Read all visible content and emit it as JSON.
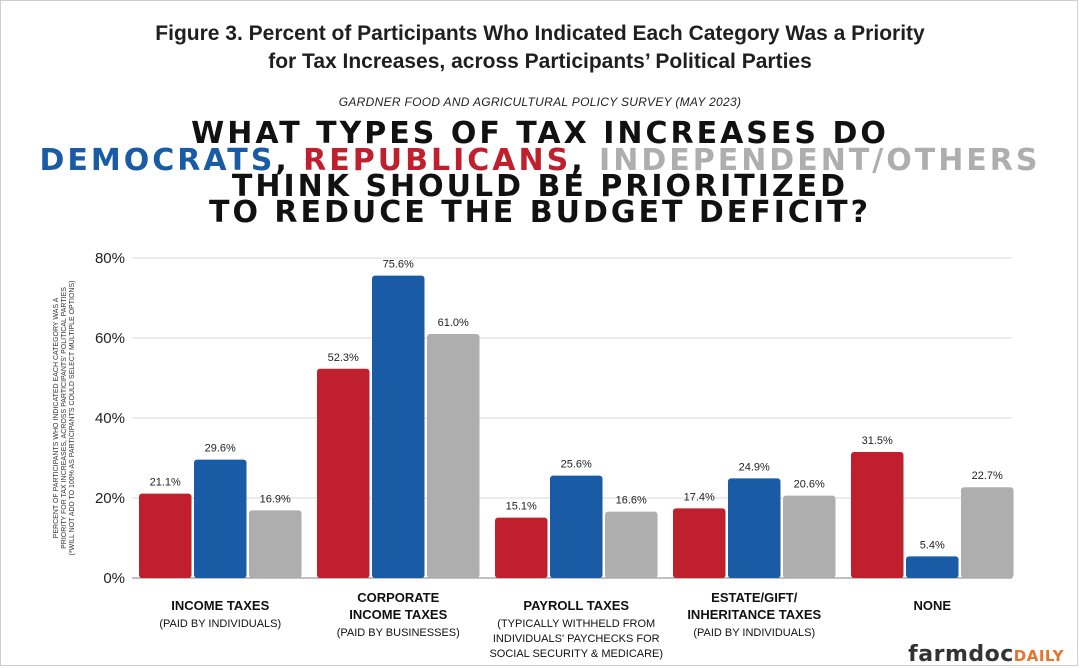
{
  "figure": {
    "title_line1": "Figure 3. Percent of Participants Who Indicated Each Category Was a Priority",
    "title_line2": "for Tax Increases, across Participants’ Political Parties",
    "source": "GARDNER FOOD AND AGRICULTURAL POLICY SURVEY (MAY 2023)"
  },
  "headline": {
    "line1": "WHAT TYPES OF TAX INCREASES DO",
    "dem": "DEMOCRATS",
    "sep1": ", ",
    "rep": "REPUBLICANS",
    "sep2": ", ",
    "ind": "INDEPENDENT/OTHERS",
    "line3": "THINK SHOULD BE PRIORITIZED",
    "line4": "TO REDUCE THE BUDGET DEFICIT?"
  },
  "brand": {
    "farmdoc": "farmdoc",
    "daily": "DAILY"
  },
  "colors": {
    "republicans": "#c0202d",
    "democrats": "#1a5ba6",
    "independents": "#aeaeae"
  },
  "chart_data": {
    "type": "bar",
    "ylabel_lines": [
      "PERCENT OF PARTICIPANTS WHO INDICATED EACH CATEGORY WAS A",
      "PRIORITY FOR TAX INCREASES, ACROSS PARTICIPANTS' POLITICAL PARTIES",
      "(*WILL NOT ADD TO 100% AS PARTICIPANTS COULD SELECT MULTIPLE OPTIONS)"
    ],
    "ylim": [
      0,
      80
    ],
    "yticks": [
      0,
      20,
      40,
      60,
      80
    ],
    "ytick_labels": [
      "0%",
      "20%",
      "40%",
      "60%",
      "80%"
    ],
    "grid": true,
    "categories": [
      {
        "main": [
          "INCOME TAXES"
        ],
        "sub": [
          "(PAID BY INDIVIDUALS)"
        ]
      },
      {
        "main": [
          "CORPORATE",
          "INCOME TAXES"
        ],
        "sub": [
          "(PAID BY BUSINESSES)"
        ]
      },
      {
        "main": [
          "PAYROLL TAXES"
        ],
        "sub": [
          "(TYPICALLY WITHHELD FROM",
          "INDIVIDUALS' PAYCHECKS FOR",
          "SOCIAL SECURITY & MEDICARE)"
        ]
      },
      {
        "main": [
          "ESTATE/GIFT/",
          "INHERITANCE TAXES"
        ],
        "sub": [
          "(PAID BY INDIVIDUALS)"
        ]
      },
      {
        "main": [
          "NONE"
        ],
        "sub": []
      }
    ],
    "series": [
      {
        "key": "republicans",
        "values": [
          21.1,
          52.3,
          15.1,
          17.4,
          31.5
        ],
        "labels": [
          "21.1%",
          "52.3%",
          "15.1%",
          "17.4%",
          "31.5%"
        ]
      },
      {
        "key": "democrats",
        "values": [
          29.6,
          75.6,
          25.6,
          24.9,
          5.4
        ],
        "labels": [
          "29.6%",
          "75.6%",
          "25.6%",
          "24.9%",
          "5.4%"
        ]
      },
      {
        "key": "independents",
        "values": [
          16.9,
          61.0,
          16.6,
          20.6,
          22.7
        ],
        "labels": [
          "16.9%",
          "61.0%",
          "16.6%",
          "20.6%",
          "22.7%"
        ]
      }
    ]
  }
}
